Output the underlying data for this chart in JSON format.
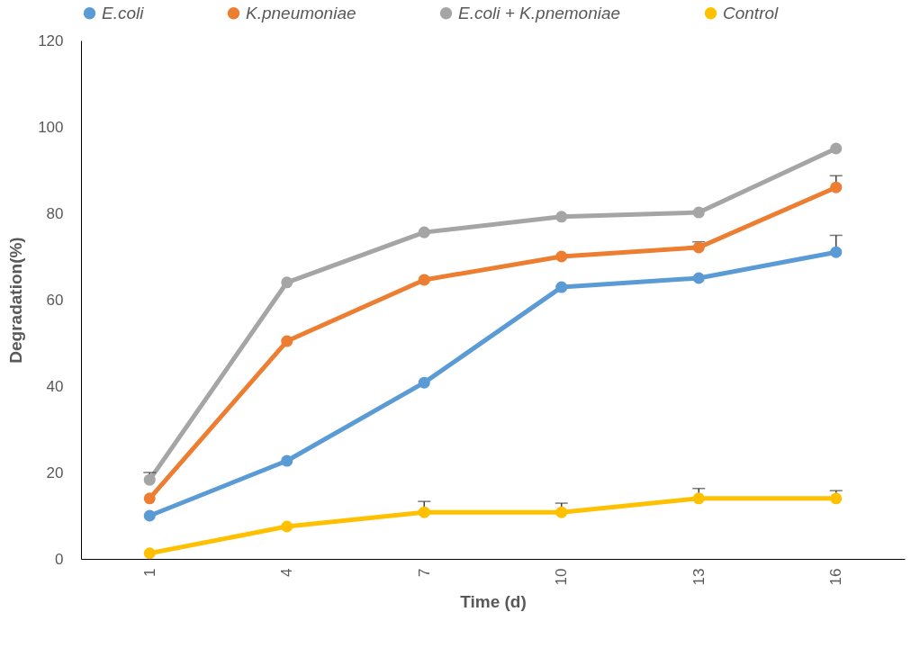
{
  "chart_data": {
    "type": "line",
    "xlabel": "Time (d)",
    "ylabel": "Degradation(%)",
    "categories": [
      "1",
      "4",
      "7",
      "10",
      "13",
      "16"
    ],
    "ylim": [
      0,
      120
    ],
    "yticks": [
      0,
      20,
      40,
      60,
      80,
      100,
      120
    ],
    "grid": false,
    "legend": "top",
    "marker": "circle",
    "line_style": "solid",
    "series": [
      {
        "name": "E.coli",
        "color": "#5b9bd5",
        "values": [
          10,
          22.7,
          40.8,
          62.9,
          65,
          71
        ],
        "errors": [
          null,
          null,
          null,
          null,
          null,
          [
            71,
            74.9
          ]
        ]
      },
      {
        "name": "K.pneumoniae",
        "color": "#ed7d31",
        "values": [
          14,
          50.4,
          64.6,
          70,
          72.1,
          86
        ],
        "errors": [
          null,
          null,
          null,
          null,
          [
            72.1,
            73.4
          ],
          [
            86,
            88.7
          ]
        ]
      },
      {
        "name": "E.coli + K.pnemoniae",
        "color": "#a5a5a5",
        "values": [
          18.3,
          64,
          75.6,
          79.2,
          80.2,
          95
        ],
        "errors": [
          [
            18.3,
            20
          ],
          null,
          null,
          null,
          null,
          null
        ]
      },
      {
        "name": "Control",
        "color": "#ffc000",
        "values": [
          1.3,
          7.5,
          10.8,
          10.8,
          14,
          14
        ],
        "errors": [
          null,
          null,
          [
            10.8,
            13.3
          ],
          [
            10.8,
            12.9
          ],
          [
            14,
            16.3
          ],
          [
            14,
            15.8
          ]
        ]
      }
    ]
  }
}
